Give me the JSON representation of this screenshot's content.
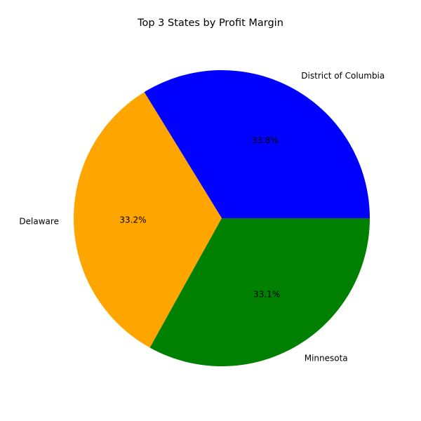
{
  "chart_data": {
    "type": "pie",
    "title": "Top 3 States by Profit Margin",
    "categories": [
      "District of Columbia",
      "Delaware",
      "Minnesota"
    ],
    "values": [
      33.8,
      33.2,
      33.1
    ],
    "value_labels": [
      "33.8%",
      "33.2%",
      "33.1%"
    ],
    "colors": [
      "#0000ff",
      "#ffa500",
      "#008000"
    ],
    "start_angle_deg": 0,
    "direction": "counterclockwise",
    "legend": "none"
  }
}
